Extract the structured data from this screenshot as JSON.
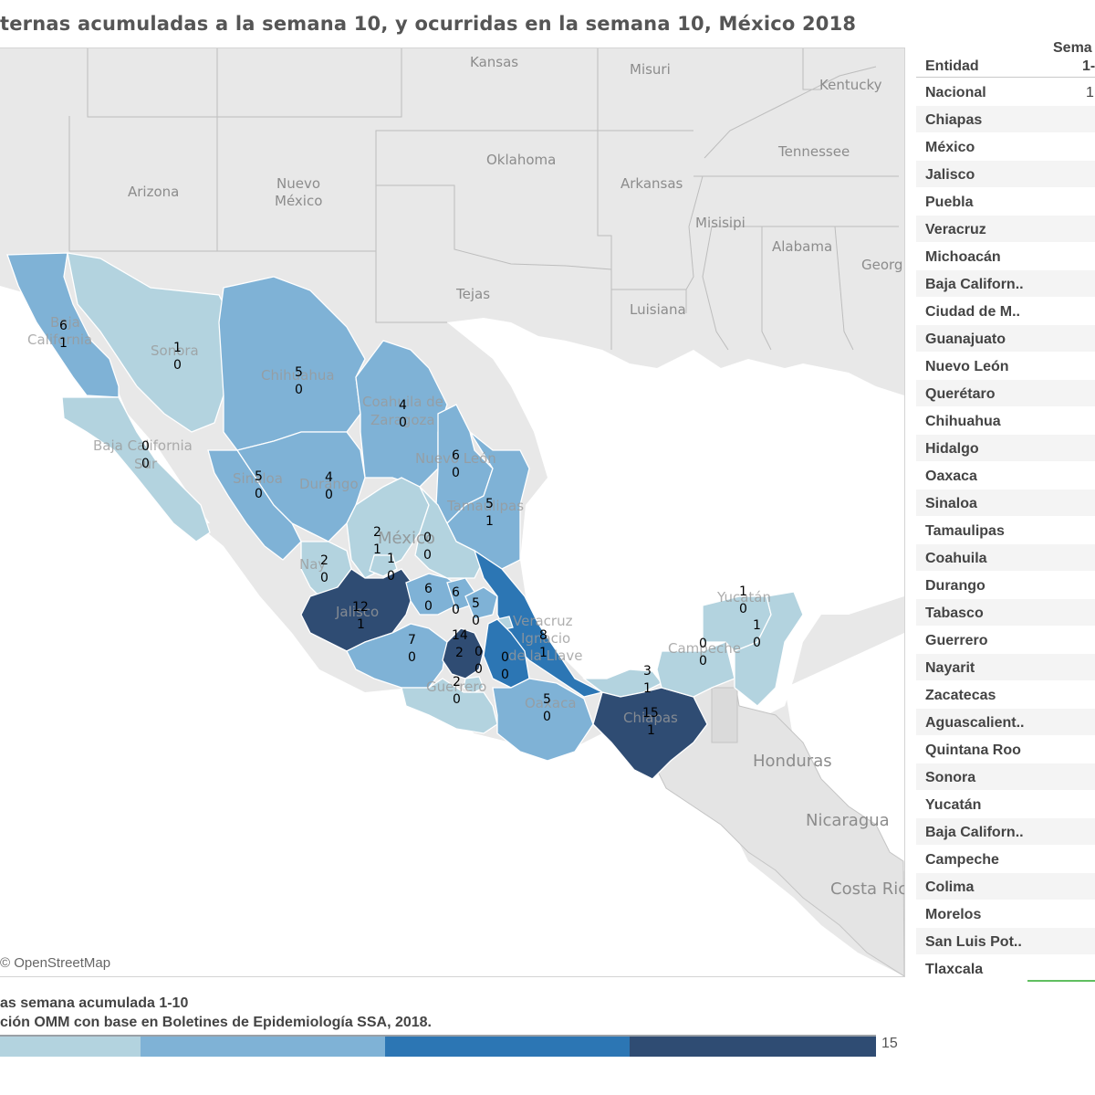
{
  "title": "ternas acumuladas a la semana 10, y ocurridas en la semana 10, México 2018",
  "attribution": "© OpenStreetMap",
  "legend": {
    "title": "as semana acumulada 1-10",
    "source": "ción OMM con base en Boletines de Epidemiología SSA, 2018.",
    "max": "15",
    "colors": [
      "#b3d3df",
      "#7fb2d6",
      "#2c76b4",
      "#2f4c73"
    ]
  },
  "geo_labels": {
    "kansas": "Kansas",
    "misuri": "Misuri",
    "kentucky": "Kentucky",
    "oklahoma": "Oklahoma",
    "tennessee": "Tennessee",
    "arkansas": "Arkansas",
    "arizona": "Arizona",
    "nuevo_mexico_1": "Nuevo",
    "nuevo_mexico_2": "México",
    "misisipi": "Misisipi",
    "alabama": "Alabama",
    "georgia": "Georg",
    "tejas": "Tejas",
    "luisiana": "Luisiana",
    "honduras": "Honduras",
    "nicaragua": "Nicaragua",
    "costa_rica": "Costa Ric",
    "mexico": "México",
    "baja": "Baja",
    "california": "California",
    "sonora": "Sonora",
    "chihuahua": "Chihuahua",
    "coahuila_1": "Coahuila de",
    "coahuila_2": "Zaragoza",
    "nuevo_leon": "Nuevo León",
    "baja_california_sur": "Baja California",
    "sur": "Sur",
    "sinaloa": "Sinaloa",
    "durango": "Durango",
    "tamaulipas": "Tamaulipas",
    "nayarit": "Nay",
    "jalisco": "Jalisco",
    "veracruz_1": "Veracruz",
    "veracruz_2": "Ignacio",
    "veracruz_3": "de la Llave",
    "guerrero": "Guerrero",
    "oaxaca": "Oaxaca",
    "chiapas": "Chiapas",
    "campeche": "Campeche",
    "yucatan": "Yucatán"
  },
  "map_labels": [
    {
      "id": "baja-california",
      "acum": "6",
      "semana": "1"
    },
    {
      "id": "sonora",
      "acum": "1",
      "semana": "0"
    },
    {
      "id": "chihuahua",
      "acum": "5",
      "semana": "0"
    },
    {
      "id": "coahuila",
      "acum": "4",
      "semana": "0"
    },
    {
      "id": "nuevo-leon",
      "acum": "6",
      "semana": "0"
    },
    {
      "id": "baja-california-sur",
      "acum": "0",
      "semana": "0"
    },
    {
      "id": "sinaloa",
      "acum": "5",
      "semana": "0"
    },
    {
      "id": "durango",
      "acum": "4",
      "semana": "0"
    },
    {
      "id": "tamaulipas",
      "acum": "5",
      "semana": "1"
    },
    {
      "id": "zacatecas",
      "acum": "2",
      "semana": "1"
    },
    {
      "id": "san-luis-potosi",
      "acum": "0",
      "semana": "0"
    },
    {
      "id": "nayarit",
      "acum": "2",
      "semana": "0"
    },
    {
      "id": "aguascalientes",
      "acum": "1",
      "semana": "0"
    },
    {
      "id": "jalisco",
      "acum": "12",
      "semana": "1"
    },
    {
      "id": "guanajuato",
      "acum": "6",
      "semana": "0"
    },
    {
      "id": "queretaro",
      "acum": "6",
      "semana": "0"
    },
    {
      "id": "hidalgo",
      "acum": "5",
      "semana": "0"
    },
    {
      "id": "tlaxcala",
      "acum": "0",
      "semana": "0"
    },
    {
      "id": "veracruz",
      "acum": "8",
      "semana": "1"
    },
    {
      "id": "michoacan",
      "acum": "7",
      "semana": "0"
    },
    {
      "id": "mexico",
      "acum": "14",
      "semana": "2"
    },
    {
      "id": "morelos",
      "acum": "0",
      "semana": "0"
    },
    {
      "id": "guerrero",
      "acum": "2",
      "semana": "0"
    },
    {
      "id": "oaxaca",
      "acum": "5",
      "semana": "0"
    },
    {
      "id": "tabasco",
      "acum": "3",
      "semana": "1"
    },
    {
      "id": "chiapas",
      "acum": "15",
      "semana": "1"
    },
    {
      "id": "campeche",
      "acum": "0",
      "semana": "0"
    },
    {
      "id": "yucatan",
      "acum": "1",
      "semana": "0"
    },
    {
      "id": "quintana-roo",
      "acum": "1",
      "semana": "0"
    }
  ],
  "table": {
    "header_entidad": "Entidad",
    "header_semana": "Sema",
    "header_semana2": "1-",
    "rows": [
      {
        "name": "Nacional",
        "value": "1"
      },
      {
        "name": "Chiapas",
        "value": ""
      },
      {
        "name": "México",
        "value": ""
      },
      {
        "name": "Jalisco",
        "value": ""
      },
      {
        "name": "Puebla",
        "value": ""
      },
      {
        "name": "Veracruz",
        "value": ""
      },
      {
        "name": "Michoacán",
        "value": ""
      },
      {
        "name": "Baja Californ..",
        "value": ""
      },
      {
        "name": "Ciudad de M..",
        "value": ""
      },
      {
        "name": "Guanajuato",
        "value": ""
      },
      {
        "name": "Nuevo León",
        "value": ""
      },
      {
        "name": "Querétaro",
        "value": ""
      },
      {
        "name": "Chihuahua",
        "value": ""
      },
      {
        "name": "Hidalgo",
        "value": ""
      },
      {
        "name": "Oaxaca",
        "value": ""
      },
      {
        "name": "Sinaloa",
        "value": ""
      },
      {
        "name": "Tamaulipas",
        "value": ""
      },
      {
        "name": "Coahuila",
        "value": ""
      },
      {
        "name": "Durango",
        "value": ""
      },
      {
        "name": "Tabasco",
        "value": ""
      },
      {
        "name": "Guerrero",
        "value": ""
      },
      {
        "name": "Nayarit",
        "value": ""
      },
      {
        "name": "Zacatecas",
        "value": ""
      },
      {
        "name": "Aguascalient..",
        "value": ""
      },
      {
        "name": "Quintana Roo",
        "value": ""
      },
      {
        "name": "Sonora",
        "value": ""
      },
      {
        "name": "Yucatán",
        "value": ""
      },
      {
        "name": "Baja Californ..",
        "value": ""
      },
      {
        "name": "Campeche",
        "value": ""
      },
      {
        "name": "Colima",
        "value": ""
      },
      {
        "name": "Morelos",
        "value": ""
      },
      {
        "name": "San Luis Pot..",
        "value": ""
      },
      {
        "name": "Tlaxcala",
        "value": ""
      }
    ]
  }
}
